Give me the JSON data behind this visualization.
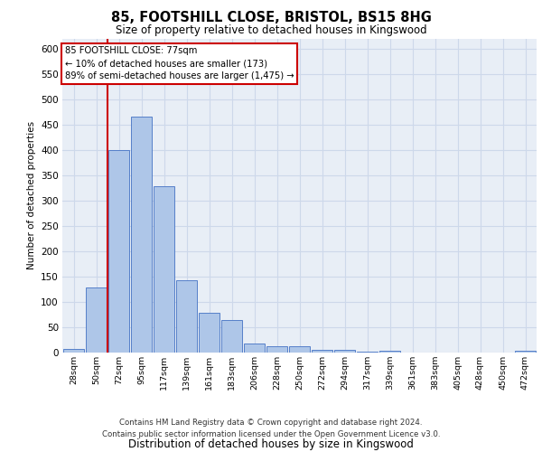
{
  "title1": "85, FOOTSHILL CLOSE, BRISTOL, BS15 8HG",
  "title2": "Size of property relative to detached houses in Kingswood",
  "xlabel": "Distribution of detached houses by size in Kingswood",
  "ylabel": "Number of detached properties",
  "footer1": "Contains HM Land Registry data © Crown copyright and database right 2024.",
  "footer2": "Contains public sector information licensed under the Open Government Licence v3.0.",
  "annotation_line1": "85 FOOTSHILL CLOSE: 77sqm",
  "annotation_line2": "← 10% of detached houses are smaller (173)",
  "annotation_line3": "89% of semi-detached houses are larger (1,475) →",
  "bar_color": "#aec6e8",
  "bar_edge_color": "#4472c4",
  "annotation_box_color": "#cc0000",
  "vline_color": "#cc0000",
  "categories": [
    "28sqm",
    "50sqm",
    "72sqm",
    "95sqm",
    "117sqm",
    "139sqm",
    "161sqm",
    "183sqm",
    "206sqm",
    "228sqm",
    "250sqm",
    "272sqm",
    "294sqm",
    "317sqm",
    "339sqm",
    "361sqm",
    "383sqm",
    "405sqm",
    "428sqm",
    "450sqm",
    "472sqm"
  ],
  "values": [
    8,
    128,
    400,
    465,
    328,
    143,
    78,
    65,
    18,
    12,
    13,
    6,
    5,
    1,
    4,
    0,
    0,
    0,
    0,
    0,
    4
  ],
  "ylim": [
    0,
    620
  ],
  "yticks": [
    0,
    50,
    100,
    150,
    200,
    250,
    300,
    350,
    400,
    450,
    500,
    550,
    600
  ],
  "vline_position": 1.5,
  "grid_color": "#cdd8ea",
  "background_color": "#e8eef6"
}
